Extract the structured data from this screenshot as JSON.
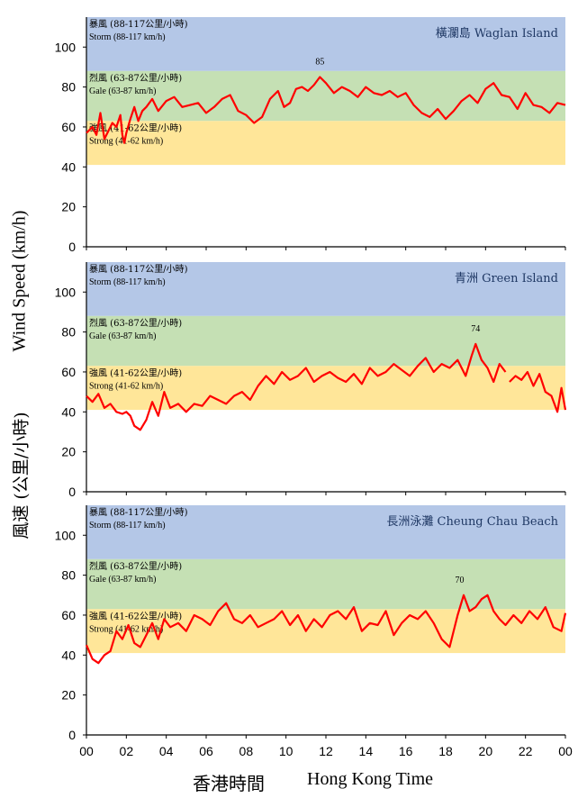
{
  "y_label_en": "Wind Speed (km/h)",
  "y_label_zh": "風速 (公里/小時)",
  "x_label_zh": "香港時間",
  "x_label_en": "Hong Kong Time",
  "colors": {
    "storm": "#b4c7e7",
    "gale": "#c5e0b4",
    "strong": "#ffe699",
    "line": "#ff0000",
    "station_text": "#1f3864"
  },
  "band_labels": {
    "storm_zh": "暴風 (88-117公里/小時)",
    "storm_en": "Storm (88-117 km/h)",
    "gale_zh": "烈風 (63-87公里/小時)",
    "gale_en": "Gale (63-87 km/h)",
    "strong_zh": "強風 (41-62公里/小時)",
    "strong_en": "Strong (41-62 km/h)"
  },
  "chart_data": [
    {
      "type": "line",
      "title": "橫瀾島 Waglan Island",
      "x_ticks": [
        "00",
        "02",
        "04",
        "06",
        "08",
        "10",
        "12",
        "14",
        "16",
        "18",
        "20",
        "22",
        "00"
      ],
      "y_ticks": [
        0,
        20,
        40,
        60,
        80,
        100
      ],
      "xlim": [
        0,
        24
      ],
      "ylim": [
        0,
        115
      ],
      "bands": [
        {
          "name": "Storm",
          "range": [
            88,
            115
          ]
        },
        {
          "name": "Gale",
          "range": [
            63,
            88
          ]
        },
        {
          "name": "Strong",
          "range": [
            41,
            63
          ]
        }
      ],
      "peak_label": {
        "x": 11.7,
        "y": 85,
        "text": "85"
      },
      "series": [
        {
          "x": [
            0,
            0.3,
            0.5,
            0.7,
            0.9,
            1.1,
            1.3,
            1.5,
            1.7,
            1.8,
            1.9,
            2.0,
            2.2,
            2.4,
            2.6,
            2.8,
            3.0,
            3.3,
            3.6,
            4.0,
            4.4,
            4.8,
            5.2,
            5.6,
            6.0,
            6.4,
            6.8,
            7.2,
            7.6,
            8.0,
            8.4,
            8.8,
            9.2,
            9.6,
            9.9,
            10.2,
            10.5,
            10.8,
            11.1,
            11.4,
            11.7,
            12.0,
            12.4,
            12.8,
            13.2,
            13.6,
            14.0,
            14.4,
            14.8,
            15.2,
            15.6,
            16.0,
            16.4,
            16.8,
            17.2,
            17.6,
            18.0,
            18.4,
            18.8,
            19.2,
            19.6,
            20.0,
            20.4,
            20.8,
            21.2,
            21.6,
            22.0,
            22.4,
            22.8,
            23.2,
            23.6,
            24
          ],
          "y": [
            57,
            60,
            56,
            67,
            54,
            58,
            62,
            60,
            66,
            56,
            52,
            57,
            64,
            70,
            63,
            68,
            70,
            74,
            68,
            73,
            75,
            70,
            71,
            72,
            67,
            70,
            74,
            76,
            68,
            66,
            62,
            65,
            74,
            78,
            70,
            72,
            79,
            80,
            78,
            81,
            85,
            82,
            77,
            80,
            78,
            75,
            80,
            77,
            76,
            78,
            75,
            77,
            71,
            67,
            65,
            69,
            64,
            68,
            73,
            76,
            72,
            79,
            82,
            76,
            75,
            69,
            77,
            71,
            70,
            67,
            72,
            71
          ]
        }
      ]
    },
    {
      "type": "line",
      "title": "青洲 Green Island",
      "x_ticks": [
        "00",
        "02",
        "04",
        "06",
        "08",
        "10",
        "12",
        "14",
        "16",
        "18",
        "20",
        "22",
        "00"
      ],
      "y_ticks": [
        0,
        20,
        40,
        60,
        80,
        100
      ],
      "xlim": [
        0,
        24
      ],
      "ylim": [
        0,
        115
      ],
      "bands": [
        {
          "name": "Storm",
          "range": [
            88,
            115
          ]
        },
        {
          "name": "Gale",
          "range": [
            63,
            88
          ]
        },
        {
          "name": "Strong",
          "range": [
            41,
            63
          ]
        }
      ],
      "peak_label": {
        "x": 19.5,
        "y": 74,
        "text": "74"
      },
      "series": [
        {
          "x": [
            0,
            0.3,
            0.6,
            0.9,
            1.2,
            1.5,
            1.8,
            2.0,
            2.2,
            2.4,
            2.7,
            3.0,
            3.3,
            3.6,
            3.9,
            4.2,
            4.6,
            5.0,
            5.4,
            5.8,
            6.2,
            6.6,
            7.0,
            7.4,
            7.8,
            8.2,
            8.6,
            9.0,
            9.4,
            9.8,
            10.2,
            10.6,
            11.0,
            11.4,
            11.8,
            12.2,
            12.6,
            13.0,
            13.4,
            13.8,
            14.2,
            14.6,
            15.0,
            15.4,
            15.8,
            16.2,
            16.6,
            17.0,
            17.4,
            17.8,
            18.2,
            18.6,
            19.0,
            19.3,
            19.5,
            19.8,
            20.1,
            20.4,
            20.7,
            21.0,
            null,
            21.2,
            21.5,
            21.8,
            22.1,
            22.4,
            22.7,
            23.0,
            23.3,
            23.6,
            23.8,
            24
          ],
          "y": [
            48,
            45,
            49,
            42,
            44,
            40,
            39,
            40,
            38,
            33,
            31,
            36,
            45,
            38,
            50,
            42,
            44,
            40,
            44,
            43,
            48,
            46,
            44,
            48,
            50,
            46,
            53,
            58,
            54,
            60,
            56,
            58,
            62,
            55,
            58,
            60,
            57,
            55,
            59,
            54,
            62,
            58,
            60,
            64,
            61,
            58,
            63,
            67,
            60,
            64,
            62,
            66,
            58,
            68,
            74,
            66,
            62,
            55,
            64,
            60,
            null,
            55,
            58,
            56,
            60,
            53,
            59,
            50,
            48,
            40,
            52,
            41
          ]
        }
      ]
    },
    {
      "type": "line",
      "title": "長洲泳灘 Cheung Chau Beach",
      "x_ticks": [
        "00",
        "02",
        "04",
        "06",
        "08",
        "10",
        "12",
        "14",
        "16",
        "18",
        "20",
        "22",
        "00"
      ],
      "y_ticks": [
        0,
        20,
        40,
        60,
        80,
        100
      ],
      "xlim": [
        0,
        24
      ],
      "ylim": [
        0,
        115
      ],
      "bands": [
        {
          "name": "Storm",
          "range": [
            88,
            115
          ]
        },
        {
          "name": "Gale",
          "range": [
            63,
            88
          ]
        },
        {
          "name": "Strong",
          "range": [
            41,
            63
          ]
        }
      ],
      "peak_label": {
        "x": 18.7,
        "y": 70,
        "text": "70"
      },
      "series": [
        {
          "x": [
            0,
            0.3,
            0.6,
            0.9,
            1.2,
            1.5,
            1.8,
            2.1,
            2.4,
            2.7,
            3.0,
            3.3,
            3.6,
            3.9,
            4.2,
            4.6,
            5.0,
            5.4,
            5.8,
            6.2,
            6.6,
            7.0,
            7.4,
            7.8,
            8.2,
            8.6,
            9.0,
            9.4,
            9.8,
            10.2,
            10.6,
            11.0,
            11.4,
            11.8,
            12.2,
            12.6,
            13.0,
            13.4,
            13.8,
            14.2,
            14.6,
            15.0,
            15.4,
            15.8,
            16.2,
            16.6,
            17.0,
            17.4,
            17.8,
            18.2,
            18.6,
            18.9,
            19.2,
            19.5,
            19.8,
            20.1,
            20.4,
            20.7,
            21.0,
            21.4,
            21.8,
            22.2,
            22.6,
            23.0,
            23.4,
            23.8,
            24
          ],
          "y": [
            45,
            38,
            36,
            40,
            42,
            52,
            48,
            55,
            46,
            44,
            50,
            56,
            48,
            58,
            54,
            56,
            52,
            60,
            58,
            55,
            62,
            66,
            58,
            56,
            60,
            54,
            56,
            58,
            62,
            55,
            60,
            52,
            58,
            54,
            60,
            62,
            58,
            64,
            52,
            56,
            55,
            62,
            50,
            56,
            60,
            58,
            62,
            56,
            48,
            44,
            60,
            70,
            62,
            64,
            68,
            70,
            62,
            58,
            55,
            60,
            56,
            62,
            58,
            64,
            54,
            52,
            61
          ]
        }
      ]
    }
  ]
}
